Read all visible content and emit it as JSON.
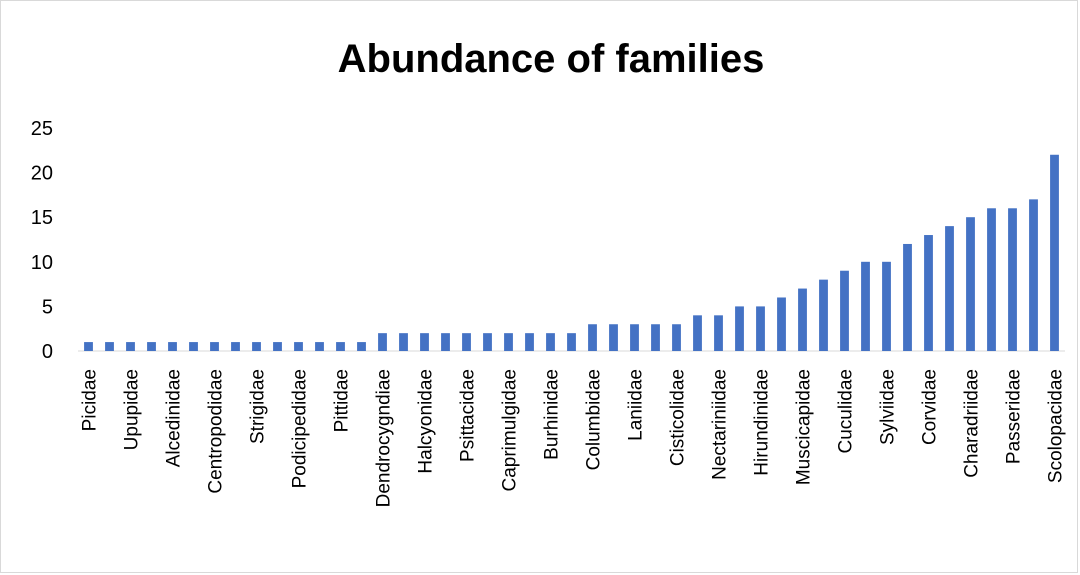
{
  "chart_data": {
    "type": "bar",
    "title": "Abundance of families",
    "xlabel": "",
    "ylabel": "",
    "ylim": [
      0,
      25
    ],
    "yticks": [
      0,
      5,
      10,
      15,
      20,
      25
    ],
    "grid": false,
    "legend": "none",
    "bar_color": "#4472C4",
    "categories": [
      "Picidae",
      "",
      "Upupidae",
      "",
      "Alcedinidae",
      "",
      "Centropodidae",
      "",
      "Strigidae",
      "",
      "Podicipedidae",
      "",
      "Pittidae",
      "",
      "Dendrocygndiae",
      "",
      "Halcyonidae",
      "",
      "Psittacidae",
      "",
      "Caprimulgidae",
      "",
      "Burhinidae",
      "",
      "Columbidae",
      "",
      "Laniidae",
      "",
      "Cisticolidae",
      "",
      "Nectariniidae",
      "",
      "Hirundinidae",
      "",
      "Muscicapidae",
      "",
      "Cuculidae",
      "",
      "Sylviidae",
      "",
      "Corvidae",
      "",
      "Charadriidae",
      "",
      "Passeridae",
      "",
      "Scolopacidae"
    ],
    "values": [
      1,
      1,
      1,
      1,
      1,
      1,
      1,
      1,
      1,
      1,
      1,
      1,
      1,
      1,
      2,
      2,
      2,
      2,
      2,
      2,
      2,
      2,
      2,
      2,
      3,
      3,
      3,
      3,
      3,
      4,
      4,
      5,
      5,
      6,
      7,
      8,
      9,
      10,
      10,
      12,
      13,
      14,
      15,
      16,
      16,
      17,
      22
    ]
  }
}
